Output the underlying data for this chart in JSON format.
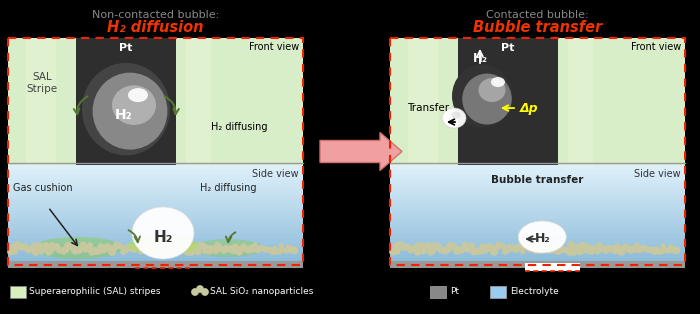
{
  "bg_color": "#000000",
  "title_left": "Non-contacted bubble:",
  "title_left_sub": "H₂ diffusion",
  "title_right": "Contacted bubble:",
  "title_right_sub": "Bubble transfer",
  "title_color": "#888888",
  "subtitle_color": "#ee3300",
  "front_view_label": "Front view",
  "side_view_label": "Side view",
  "pt_label": "Pt",
  "sal_stripe_label": "SAL\nStripe",
  "h2_label": "H₂",
  "h2_diffusing_label": "H₂ diffusing",
  "gas_cushion_label": "Gas cushion",
  "bubble_transfer_label": "Bubble transfer",
  "transfer_label": "Transfer",
  "delta_p_label": "Δp",
  "legend_sal": "Superaerophilic (SAL) stripes",
  "legend_nanoparticles": "SAL SiO₂ nanoparticles",
  "legend_pt": "Pt",
  "legend_electrolyte": "Electrolyte",
  "sal_color": "#d8eebc",
  "electrolyte_color": "#99ccee",
  "electrolyte_top": "#cce8f8",
  "nanoparticle_color": "#c8c8a0",
  "nanoparticle_dark": "#999977",
  "dashed_border_color": "#ee2200",
  "front_dark_bg": "#2e2e2e",
  "sal_stripe_color": "#d8eec8",
  "sal_stripe_light": "#e8f4d8",
  "pt_color": "#555555",
  "right_sal_stripe_color": "#d8eec8",
  "substrate_color": "#999999",
  "bubble_gray": "#888888",
  "bubble_light": "#aaaaaa",
  "bubble_highlight": "#dddddd",
  "white": "#ffffff",
  "arrow_big_color": "#f0a0a0",
  "arrow_big_edge": "#d07070"
}
